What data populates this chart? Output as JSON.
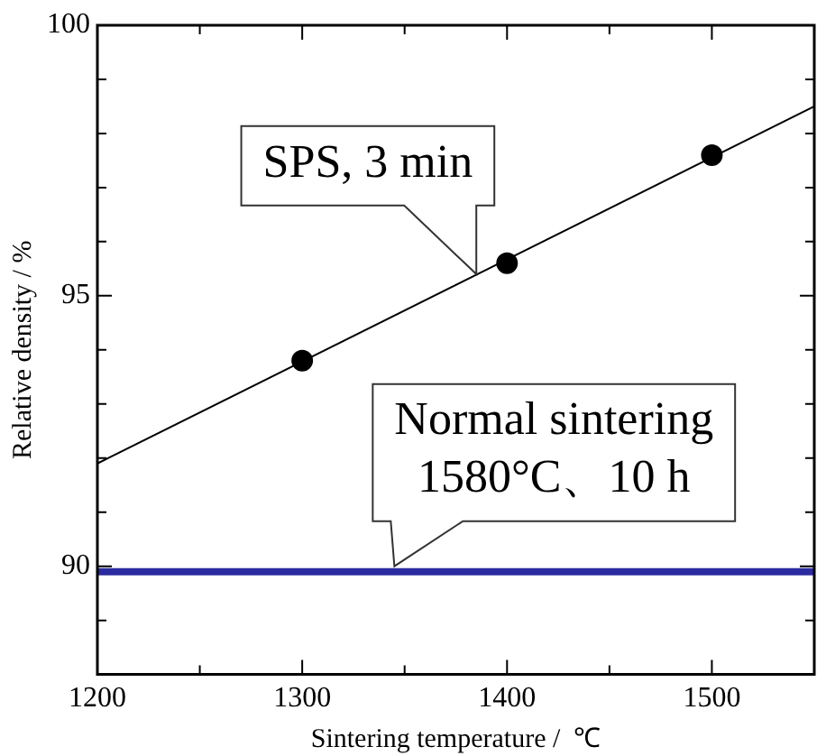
{
  "chart_data": {
    "type": "scatter",
    "xlabel": "Sintering temperature /  ℃",
    "ylabel": "Relative density / %",
    "xlim": [
      1200,
      1550
    ],
    "xticks": [
      1200,
      {
        "value": 1250,
        "label": null
      },
      1300,
      {
        "value": 1350,
        "label": null
      },
      1400,
      {
        "value": 1450,
        "label": null
      },
      1500,
      {
        "value": 1550,
        "label": null
      }
    ],
    "ylim": [
      88,
      100
    ],
    "yticks": [
      {
        "value": 89,
        "label": null
      },
      90,
      {
        "value": 91,
        "label": null
      },
      {
        "value": 92,
        "label": null
      },
      {
        "value": 93,
        "label": null
      },
      {
        "value": 94,
        "label": null
      },
      95,
      {
        "value": 96,
        "label": null
      },
      {
        "value": 97,
        "label": null
      },
      {
        "value": 98,
        "label": null
      },
      {
        "value": 99,
        "label": null
      },
      100
    ],
    "grid": false,
    "legend": false,
    "marker": "circle",
    "series": [
      {
        "color": "#000000",
        "x": [
          1300,
          1400,
          1500
        ],
        "values": [
          93.8,
          95.6,
          97.6
        ]
      },
      {
        "type": "line",
        "color": "#000000",
        "x": [
          1200,
          1550
        ],
        "values": [
          91.9,
          98.5
        ],
        "marker": "none"
      }
    ],
    "ref_lines": [
      {
        "axis": "y",
        "value": 89.9,
        "color": "#2b2ba0"
      }
    ],
    "annotations": [
      {
        "text": "SPS, 3 min",
        "x": 1385,
        "y": 95.4
      },
      {
        "text": "Normal sintering\n1580°C、10 h",
        "x": 1345,
        "y": 90
      }
    ]
  }
}
